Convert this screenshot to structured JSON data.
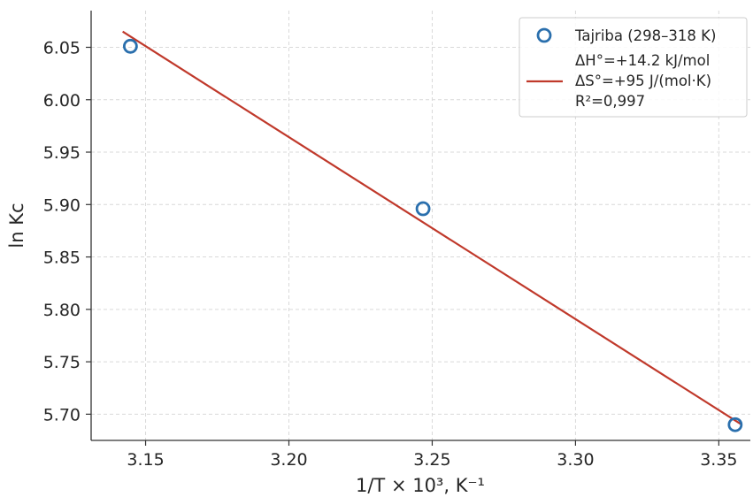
{
  "chart_data": {
    "type": "scatter",
    "xlabel": "1/T × 10³, K⁻¹",
    "ylabel": "ln Kc",
    "xlim": [
      3.131,
      3.361
    ],
    "ylim": [
      5.675,
      6.085
    ],
    "x_ticks": [
      3.15,
      3.2,
      3.25,
      3.3,
      3.35
    ],
    "x_tick_labels": [
      "3.15",
      "3.20",
      "3.25",
      "3.30",
      "3.35"
    ],
    "y_ticks": [
      5.7,
      5.75,
      5.8,
      5.85,
      5.9,
      5.95,
      6.0,
      6.05
    ],
    "y_tick_labels": [
      "5.70",
      "5.75",
      "5.80",
      "5.85",
      "5.90",
      "5.95",
      "6.00",
      "6.05"
    ],
    "grid": true,
    "legend_position": "top-right",
    "series": [
      {
        "name": "Tajriba (298–318 K)",
        "kind": "scatter",
        "marker": "open-circle",
        "color": "#2a6fad",
        "x": [
          3.1447,
          3.2468,
          3.3557
        ],
        "y": [
          6.051,
          5.896,
          5.69
        ]
      },
      {
        "name_lines": [
          "ΔH°=+14.2 kJ/mol",
          "ΔS°=+95 J/(mol·K)",
          "R²=0,997"
        ],
        "kind": "line",
        "color": "#c0392b",
        "x": [
          3.142,
          3.358
        ],
        "y": [
          6.065,
          5.69
        ]
      }
    ]
  }
}
